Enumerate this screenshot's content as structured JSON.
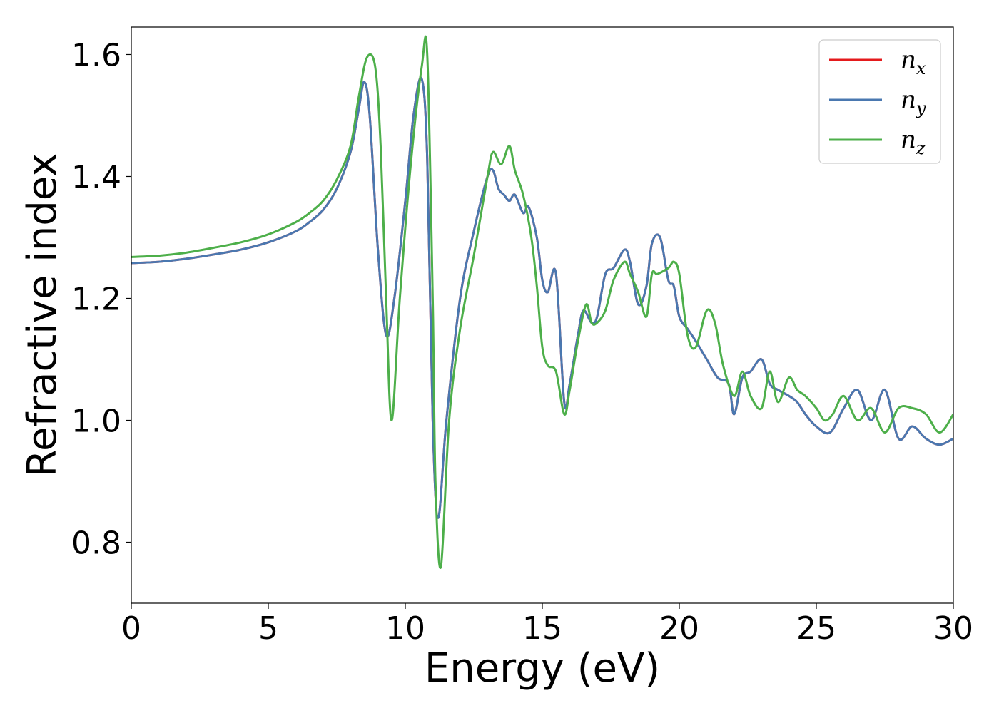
{
  "chart_data": {
    "type": "line",
    "xlabel": "Energy (eV)",
    "ylabel": "Refractive index",
    "xlim": [
      0,
      30
    ],
    "ylim": [
      0.7,
      1.645
    ],
    "x_ticks": [
      0,
      5,
      10,
      15,
      20,
      25,
      30
    ],
    "y_ticks": [
      0.8,
      1.0,
      1.2,
      1.4,
      1.6
    ],
    "x_tick_labels": [
      "0",
      "5",
      "10",
      "15",
      "20",
      "25",
      "30"
    ],
    "y_tick_labels": [
      "0.8",
      "1.0",
      "1.2",
      "1.4",
      "1.6"
    ],
    "grid": false,
    "legend_position": "top-right",
    "series": [
      {
        "name": "n",
        "subscript": "x",
        "color": "#e41a1c",
        "x": [
          0,
          1,
          2,
          3,
          4,
          5,
          6,
          6.5,
          7,
          7.5,
          8,
          8.3,
          8.5,
          8.7,
          9,
          9.3,
          9.6,
          10,
          10.3,
          10.6,
          10.8,
          11,
          11.2,
          11.5,
          12,
          12.5,
          13,
          13.2,
          13.4,
          13.6,
          13.8,
          14,
          14.3,
          14.5,
          14.8,
          15,
          15.2,
          15.5,
          15.8,
          16,
          16.3,
          16.5,
          16.8,
          17,
          17.3,
          17.6,
          18,
          18.2,
          18.5,
          18.8,
          19,
          19.3,
          19.6,
          19.8,
          20,
          20.3,
          20.6,
          21,
          21.4,
          21.8,
          22,
          22.3,
          22.6,
          23,
          23.3,
          23.6,
          24,
          24.3,
          24.6,
          25,
          25.5,
          26,
          26.5,
          27,
          27.5,
          28,
          28.5,
          29,
          29.5,
          30
        ],
        "values": [
          1.258,
          1.26,
          1.265,
          1.272,
          1.28,
          1.292,
          1.31,
          1.325,
          1.345,
          1.38,
          1.44,
          1.51,
          1.555,
          1.5,
          1.28,
          1.14,
          1.2,
          1.36,
          1.5,
          1.56,
          1.43,
          1.0,
          0.84,
          1.0,
          1.2,
          1.31,
          1.4,
          1.41,
          1.38,
          1.37,
          1.36,
          1.37,
          1.34,
          1.35,
          1.3,
          1.23,
          1.21,
          1.24,
          1.03,
          1.06,
          1.14,
          1.18,
          1.16,
          1.17,
          1.24,
          1.25,
          1.28,
          1.26,
          1.19,
          1.22,
          1.29,
          1.3,
          1.23,
          1.22,
          1.17,
          1.15,
          1.13,
          1.1,
          1.07,
          1.06,
          1.01,
          1.07,
          1.08,
          1.1,
          1.06,
          1.05,
          1.04,
          1.03,
          1.01,
          0.99,
          0.98,
          1.02,
          1.05,
          1.0,
          1.05,
          0.97,
          0.99,
          0.97,
          0.96,
          0.97
        ]
      },
      {
        "name": "n",
        "subscript": "y",
        "color": "#4a78b0",
        "x": [
          0,
          1,
          2,
          3,
          4,
          5,
          6,
          6.5,
          7,
          7.5,
          8,
          8.3,
          8.5,
          8.7,
          9,
          9.3,
          9.6,
          10,
          10.3,
          10.6,
          10.8,
          11,
          11.2,
          11.5,
          12,
          12.5,
          13,
          13.2,
          13.4,
          13.6,
          13.8,
          14,
          14.3,
          14.5,
          14.8,
          15,
          15.2,
          15.5,
          15.8,
          16,
          16.3,
          16.5,
          16.8,
          17,
          17.3,
          17.6,
          18,
          18.2,
          18.5,
          18.8,
          19,
          19.3,
          19.6,
          19.8,
          20,
          20.3,
          20.6,
          21,
          21.4,
          21.8,
          22,
          22.3,
          22.6,
          23,
          23.3,
          23.6,
          24,
          24.3,
          24.6,
          25,
          25.5,
          26,
          26.5,
          27,
          27.5,
          28,
          28.5,
          29,
          29.5,
          30
        ],
        "values": [
          1.258,
          1.26,
          1.265,
          1.272,
          1.28,
          1.292,
          1.31,
          1.325,
          1.345,
          1.38,
          1.44,
          1.51,
          1.555,
          1.5,
          1.28,
          1.14,
          1.2,
          1.36,
          1.5,
          1.56,
          1.43,
          1.0,
          0.84,
          1.0,
          1.2,
          1.31,
          1.4,
          1.41,
          1.38,
          1.37,
          1.36,
          1.37,
          1.34,
          1.35,
          1.3,
          1.23,
          1.21,
          1.24,
          1.03,
          1.06,
          1.14,
          1.18,
          1.16,
          1.17,
          1.24,
          1.25,
          1.28,
          1.26,
          1.19,
          1.22,
          1.29,
          1.3,
          1.23,
          1.22,
          1.17,
          1.15,
          1.13,
          1.1,
          1.07,
          1.06,
          1.01,
          1.07,
          1.08,
          1.1,
          1.06,
          1.05,
          1.04,
          1.03,
          1.01,
          0.99,
          0.98,
          1.02,
          1.05,
          1.0,
          1.05,
          0.97,
          0.99,
          0.97,
          0.96,
          0.97
        ]
      },
      {
        "name": "n",
        "subscript": "z",
        "color": "#4daf4a",
        "x": [
          0,
          1,
          2,
          3,
          4,
          5,
          6,
          6.5,
          7,
          7.5,
          8,
          8.3,
          8.6,
          8.9,
          9.1,
          9.3,
          9.5,
          9.8,
          10.2,
          10.6,
          10.8,
          11,
          11.1,
          11.3,
          11.6,
          12,
          12.5,
          13,
          13.2,
          13.5,
          13.8,
          14,
          14.3,
          14.6,
          14.8,
          15,
          15.2,
          15.5,
          15.8,
          16,
          16.3,
          16.6,
          16.8,
          17,
          17.3,
          17.6,
          18,
          18.2,
          18.5,
          18.8,
          19,
          19.2,
          19.6,
          19.8,
          20,
          20.3,
          20.6,
          21,
          21.3,
          21.6,
          22,
          22.3,
          22.6,
          23,
          23.3,
          23.6,
          24,
          24.3,
          24.6,
          25,
          25.3,
          25.6,
          26,
          26.5,
          27,
          27.5,
          28,
          28.5,
          29,
          29.5,
          30
        ],
        "values": [
          1.268,
          1.27,
          1.275,
          1.283,
          1.292,
          1.305,
          1.325,
          1.34,
          1.36,
          1.395,
          1.45,
          1.53,
          1.595,
          1.58,
          1.45,
          1.2,
          1.0,
          1.2,
          1.42,
          1.58,
          1.6,
          1.2,
          0.9,
          0.76,
          1.0,
          1.15,
          1.27,
          1.4,
          1.44,
          1.42,
          1.45,
          1.41,
          1.37,
          1.3,
          1.22,
          1.12,
          1.09,
          1.08,
          1.01,
          1.05,
          1.13,
          1.19,
          1.16,
          1.16,
          1.18,
          1.23,
          1.26,
          1.24,
          1.21,
          1.17,
          1.24,
          1.24,
          1.25,
          1.26,
          1.24,
          1.14,
          1.12,
          1.18,
          1.16,
          1.09,
          1.04,
          1.08,
          1.04,
          1.02,
          1.08,
          1.03,
          1.07,
          1.05,
          1.04,
          1.02,
          1.0,
          1.01,
          1.04,
          1.0,
          1.02,
          0.98,
          1.02,
          1.02,
          1.01,
          0.98,
          1.01
        ]
      }
    ]
  }
}
